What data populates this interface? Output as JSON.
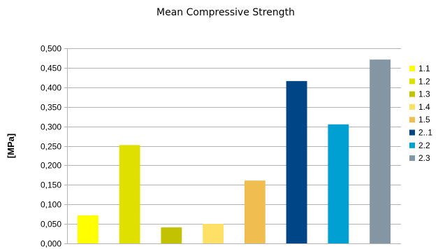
{
  "chart_data": {
    "type": "bar",
    "title": "Mean Compressive Strength",
    "xlabel": "",
    "ylabel": "[MPa]",
    "ylim": [
      0,
      0.5
    ],
    "y_ticks": [
      "0,000",
      "0,050",
      "0,100",
      "0,150",
      "0,200",
      "0,250",
      "0,300",
      "0,350",
      "0,400",
      "0,450",
      "0,500"
    ],
    "grid": true,
    "legend_position": "right",
    "categories": [
      "1.1",
      "1.2",
      "1.3",
      "1.4",
      "1.5",
      "2..1",
      "2.2",
      "2.3"
    ],
    "values": [
      0.072,
      0.252,
      0.041,
      0.05,
      0.161,
      0.416,
      0.305,
      0.471
    ],
    "colors": [
      "#ffff00",
      "#e0e000",
      "#c2c200",
      "#ffe066",
      "#f0be50",
      "#004586",
      "#00a0d2",
      "#8496a3"
    ]
  }
}
